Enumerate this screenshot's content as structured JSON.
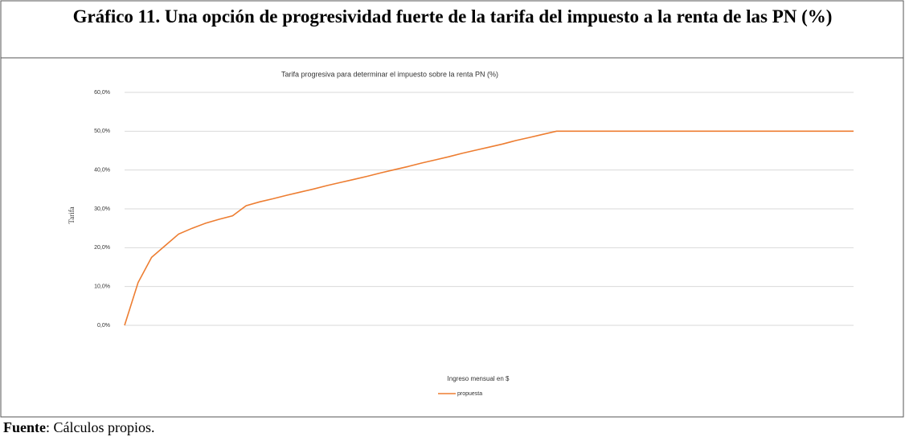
{
  "figure_title": "Gráfico 11. Una opción de progresividad fuerte de la tarifa del impuesto a la renta de las PN (%)",
  "source": {
    "label": "Fuente",
    "text": ": Cálculos propios."
  },
  "chart_data": {
    "type": "line",
    "title": "Tarifa progresiva para determinar el impuesto sobre la renta PN (%)",
    "x_label": "Ingreso mensual en $",
    "y_label": "Tarifa",
    "categories": [
      null,
      null,
      null,
      null,
      null,
      null,
      null,
      null,
      null,
      null,
      null,
      null,
      null,
      null,
      null,
      null,
      null,
      null,
      null,
      null,
      null,
      null,
      null,
      null,
      null,
      null,
      null,
      null,
      null,
      null,
      null,
      null,
      null,
      null,
      null,
      null,
      null,
      null,
      null,
      null,
      null,
      null,
      null,
      null,
      null,
      null,
      null,
      null,
      null,
      null,
      null,
      null,
      null,
      null,
      null
    ],
    "series": [
      {
        "name": "propuesta",
        "color": "#ed7d31",
        "values": [
          0,
          11,
          17.5,
          20.5,
          23.5,
          25,
          26.3,
          27.3,
          28.2,
          30.8,
          31.8,
          32.6,
          33.5,
          34.3,
          35.1,
          36,
          36.8,
          37.6,
          38.4,
          39.3,
          40.1,
          40.9,
          41.8,
          42.6,
          43.4,
          44.3,
          45.1,
          45.9,
          46.7,
          47.6,
          48.4,
          49.2,
          50,
          50,
          50,
          50,
          50,
          50,
          50,
          50,
          50,
          50,
          50,
          50,
          50,
          50,
          50,
          50,
          50,
          50,
          50,
          50,
          50,
          50,
          50
        ]
      }
    ],
    "ylim": [
      0,
      60
    ],
    "yticks": [
      {
        "value": 0,
        "label": "0,0%"
      },
      {
        "value": 10,
        "label": "10,0%"
      },
      {
        "value": 20,
        "label": "20,0%"
      },
      {
        "value": 30,
        "label": "30,0%"
      },
      {
        "value": 40,
        "label": "40,0%"
      },
      {
        "value": 50,
        "label": "50,0%"
      },
      {
        "value": 60,
        "label": "60,0%"
      }
    ],
    "grid": true,
    "legend": "bottom"
  }
}
